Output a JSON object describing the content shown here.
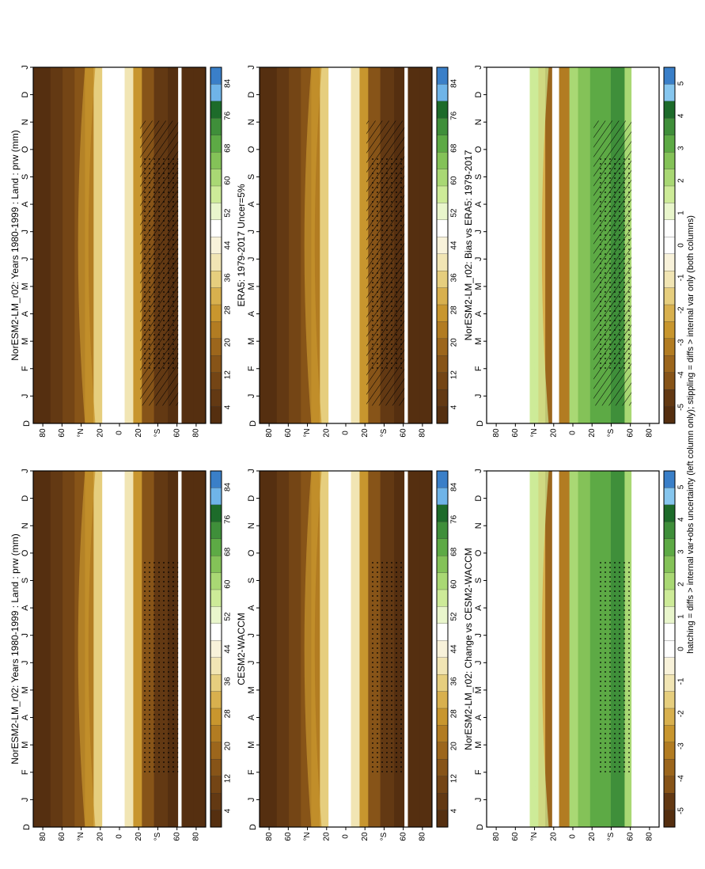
{
  "page": {
    "footnote": "hatching = diffs > internal var+obs uncertainty (left column only); stippling = diffs > internal var only (both columns)"
  },
  "axes": {
    "months": [
      "J",
      "F",
      "M",
      "A",
      "M",
      "J",
      "J",
      "A",
      "S",
      "O",
      "N",
      "D",
      "J"
    ],
    "lat_ticks": [
      "80",
      "60",
      "°N",
      "20",
      "0",
      "20",
      "°S",
      "60",
      "80"
    ],
    "x_start_label": "D"
  },
  "colorbars": {
    "abs": {
      "labels": [
        "84",
        "76",
        "68",
        "60",
        "52",
        "44",
        "36",
        "28",
        "20",
        "12",
        "4"
      ],
      "colors": [
        "#3A7FC8",
        "#6FB4E8",
        "#1D6B2A",
        "#3F8F3A",
        "#5DAA45",
        "#84C258",
        "#A9D874",
        "#CDEB98",
        "#E9F6CC",
        "#FFFFFF",
        "#F8F2DA",
        "#F1E5B4",
        "#E6CE7E",
        "#D8B04E",
        "#C8962E",
        "#B27C22",
        "#9C661C",
        "#875418",
        "#744515",
        "#633913",
        "#552F10"
      ]
    },
    "diff": {
      "labels": [
        "5",
        "4",
        "3",
        "2",
        "1",
        "0",
        "-1",
        "-2",
        "-3",
        "-4",
        "-5"
      ],
      "colors": [
        "#3A7FC8",
        "#86C6EE",
        "#1D6B2A",
        "#3F8F3A",
        "#5DAA45",
        "#84C258",
        "#A9D874",
        "#CDEB98",
        "#E9F6CC",
        "#FFFFFF",
        "#FFFFFF",
        "#F8F2DA",
        "#F1E5B4",
        "#E6CE7E",
        "#D8B04E",
        "#C8962E",
        "#B27C22",
        "#9C661C",
        "#875418",
        "#633913",
        "#552F10"
      ]
    }
  },
  "chart_data": [
    {
      "id": "p1",
      "type": "heatmap",
      "title": "NorESM2-LM_r02: Years 1980-1999 : Land : prw (mm)",
      "x": "month",
      "y": "latitude",
      "colorbar": "abs",
      "overlay": "hatching+stippling"
    },
    {
      "id": "p2",
      "type": "heatmap",
      "title": "NorESM2-LM_r02: Years 1980-1999 : Land : prw (mm)",
      "x": "month",
      "y": "latitude",
      "colorbar": "abs",
      "overlay": "stippling"
    },
    {
      "id": "p3",
      "type": "heatmap",
      "title": "ERA5: 1979-2017 Uncer=5%",
      "x": "month",
      "y": "latitude",
      "colorbar": "abs",
      "overlay": "hatching+stippling"
    },
    {
      "id": "p4",
      "type": "heatmap",
      "title": "CESM2-WACCM",
      "x": "month",
      "y": "latitude",
      "colorbar": "abs",
      "overlay": "stippling"
    },
    {
      "id": "p5",
      "type": "heatmap",
      "title": "NorESM2-LM_r02: Bias vs ERA5: 1979-2017",
      "x": "month",
      "y": "latitude",
      "colorbar": "diff",
      "overlay": "hatching+stippling"
    },
    {
      "id": "p6",
      "type": "heatmap",
      "title": "NorESM2-LM_r02: Change vs CESM2-WACCM",
      "x": "month",
      "y": "latitude",
      "colorbar": "diff",
      "overlay": "stippling"
    }
  ]
}
